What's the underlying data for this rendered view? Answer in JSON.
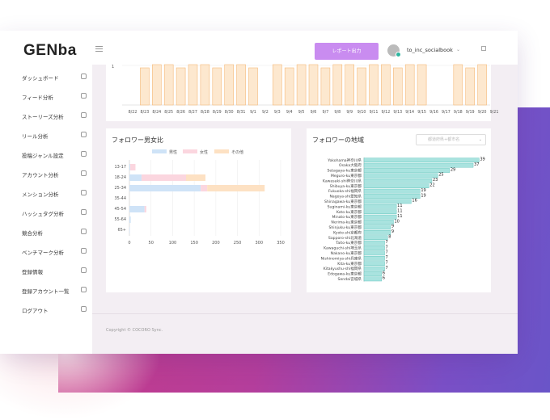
{
  "header": {
    "logo": "GENba",
    "report_button": "レポート出力",
    "username": "to_inc_socialbook",
    "caret": "⌄"
  },
  "sidebar": {
    "items": [
      {
        "label": "ダッシュボード",
        "icon": "dashboard-icon"
      },
      {
        "label": "フィード分析",
        "icon": "image-icon"
      },
      {
        "label": "ストーリーズ分析",
        "icon": "send-icon"
      },
      {
        "label": "リール分析",
        "icon": "document-icon"
      },
      {
        "label": "投稿ジャンル設定",
        "icon": "tag-icon"
      },
      {
        "label": "アカウント分析",
        "icon": "users-icon"
      },
      {
        "label": "メンション分析",
        "icon": "at-icon"
      },
      {
        "label": "ハッシュタグ分析",
        "icon": "tag-icon"
      },
      {
        "label": "競合分析",
        "icon": "globe-icon"
      },
      {
        "label": "ベンチマーク分析",
        "icon": "check-icon"
      },
      {
        "label": "登録情報",
        "icon": "user-card-icon"
      },
      {
        "label": "登録アカウント一覧",
        "icon": "user-card-icon"
      },
      {
        "label": "ログアウト",
        "icon": "user-card-icon"
      }
    ]
  },
  "top_chart": {
    "y_tick": "1",
    "dates": [
      "8/22",
      "8/23",
      "8/24",
      "8/25",
      "8/26",
      "8/27",
      "8/28",
      "8/29",
      "8/30",
      "8/31",
      "9/1",
      "9/2",
      "9/3",
      "9/4",
      "9/5",
      "9/6",
      "9/7",
      "9/8",
      "9/9",
      "9/10",
      "9/11",
      "9/12",
      "9/13",
      "9/14",
      "9/15",
      "9/16",
      "9/17",
      "9/18",
      "9/19",
      "9/20",
      "9/21"
    ],
    "present": [
      0,
      1,
      1,
      1,
      1,
      1,
      1,
      1,
      1,
      1,
      1,
      0,
      1,
      1,
      1,
      1,
      1,
      1,
      1,
      1,
      1,
      1,
      1,
      1,
      1,
      0,
      0,
      1,
      1,
      1,
      0
    ],
    "fill": "#fde8cf",
    "stroke": "#f5b97a"
  },
  "gender_card": {
    "title": "フォロワー男女比",
    "legend": [
      {
        "label": "男性",
        "color": "#cfe3f7"
      },
      {
        "label": "女性",
        "color": "#fbd6df"
      },
      {
        "label": "その他",
        "color": "#fde1c3"
      }
    ]
  },
  "region_card": {
    "title": "フォロワーの地域",
    "select_placeholder": "都道府県+都市名",
    "select_caret": "⌄"
  },
  "footer": {
    "copyright": "Copyright © COCORO Sync."
  },
  "chart_data": [
    {
      "type": "bar",
      "orientation": "horizontal",
      "stacked": true,
      "categories": [
        "13-17",
        "18-24",
        "25-34",
        "35-44",
        "45-54",
        "55-64",
        "65+"
      ],
      "series": [
        {
          "name": "男性",
          "values": [
            2,
            28,
            165,
            0,
            35,
            3,
            1
          ]
        },
        {
          "name": "女性",
          "values": [
            12,
            103,
            15,
            0,
            4,
            0,
            0
          ]
        },
        {
          "name": "その他",
          "values": [
            0,
            45,
            133,
            0,
            0,
            0,
            0
          ]
        }
      ],
      "xticks": [
        0,
        50,
        100,
        150,
        200,
        250,
        300,
        350
      ],
      "xlim": [
        0,
        350
      ],
      "legend": "top"
    },
    {
      "type": "bar",
      "orientation": "horizontal",
      "categories": [
        "Yokohama神奈川県",
        "Osaka大阪府",
        "Setagaya-ku東京都",
        "Meguro-ku東京都",
        "Kawasaki-shi神奈川県",
        "Shibuya-ku東京都",
        "Fukuoka-shi福岡県",
        "Nagoya-shi愛知県",
        "Shinagawa-ku東京都",
        "Suginami-ku東京都",
        "Koto-ku東京都",
        "Minato-ku東京都",
        "Nerima-ku東京都",
        "Shinjuku-ku東京都",
        "Kyoto-shi京都府",
        "Sapporo-shi北海道",
        "Taito-ku東京都",
        "Kawaguchi-shi埼玉県",
        "Nakano-ku東京都",
        "Nishinomiya-shi兵庫県",
        "Kita-ku東京都",
        "Kitakyushu-shi福岡県",
        "Edogawa-ku東京都",
        "Sendai宮城県"
      ],
      "values": [
        39,
        37,
        29,
        25,
        23,
        22,
        19,
        19,
        16,
        11,
        11,
        11,
        10,
        9,
        9,
        8,
        7,
        7,
        7,
        7,
        7,
        7,
        6,
        6
      ],
      "color": "#a9e3df",
      "stroke": "#55c0b8"
    }
  ]
}
